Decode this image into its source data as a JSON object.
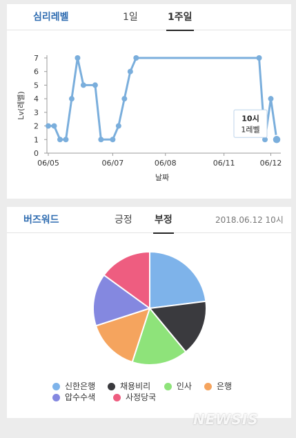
{
  "top_card": {
    "tabs": [
      {
        "label": "심리레벨",
        "accent": true
      },
      {
        "label": "1일",
        "active": false
      },
      {
        "label": "1주일",
        "active": true
      }
    ]
  },
  "bottom_card": {
    "tabs": [
      {
        "label": "버즈워드",
        "accent": true
      },
      {
        "label": "긍정",
        "active": false
      },
      {
        "label": "부정",
        "active": true
      }
    ],
    "timestamp": "2018.06.12 10시"
  },
  "tooltip": {
    "time": "10시",
    "level": "1레벨"
  },
  "watermark": "NEWSIS",
  "chart_data": [
    {
      "type": "line",
      "xlabel": "날짜",
      "ylabel": "Lv(레벨)",
      "ylim": [
        0,
        7
      ],
      "yticks": [
        "0",
        "1",
        "2",
        "3",
        "4",
        "5",
        "6",
        "7"
      ],
      "xticks": [
        "06/05",
        "06/07",
        "06/08",
        "06/11",
        "06/12"
      ],
      "color": "#7aaedc",
      "values": [
        2,
        2,
        1,
        1,
        4,
        7,
        5,
        5,
        5,
        1,
        1,
        1,
        2,
        4,
        6,
        7,
        7,
        7,
        7,
        7,
        7,
        7,
        7,
        7,
        7,
        7,
        7,
        7,
        7,
        7,
        7,
        7,
        7,
        7,
        7,
        7,
        7,
        1,
        4,
        1
      ],
      "highlight_index": 39
    },
    {
      "type": "pie",
      "slices": [
        {
          "label": "신한은행",
          "value": 23,
          "color": "#7eb3ea"
        },
        {
          "label": "채용비리",
          "value": 16,
          "color": "#3a3a3e"
        },
        {
          "label": "인사",
          "value": 16,
          "color": "#8ee37a"
        },
        {
          "label": "은행",
          "value": 15,
          "color": "#f5a45e"
        },
        {
          "label": "압수수색",
          "value": 15,
          "color": "#8488e0"
        },
        {
          "label": "사정당국",
          "value": 15,
          "color": "#ee5d80"
        }
      ]
    }
  ]
}
